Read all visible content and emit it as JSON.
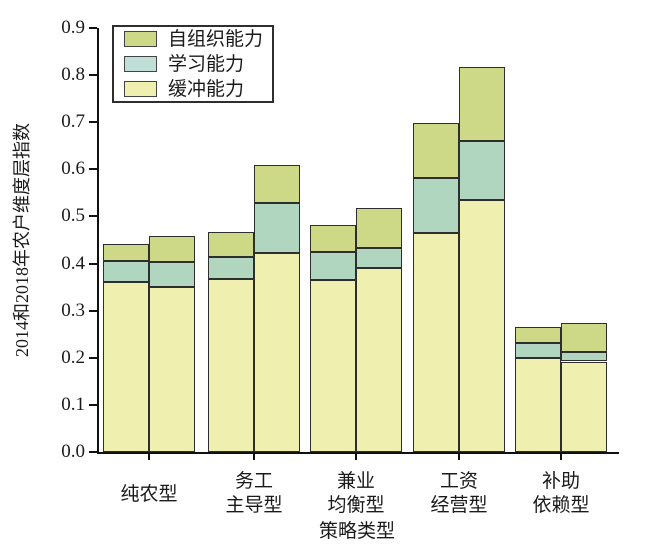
{
  "chart_data": {
    "type": "bar",
    "stacked": true,
    "title": "",
    "xlabel": "策略类型",
    "ylabel": "2014和2018年农户维度层指数",
    "ylim": [
      0,
      0.9
    ],
    "ytick_step": 0.1,
    "ytick_labels": [
      "0.0",
      "0.1",
      "0.2",
      "0.3",
      "0.4",
      "0.5",
      "0.6",
      "0.7",
      "0.8",
      "0.9"
    ],
    "grid": false,
    "legend_position": "top-left-inside",
    "series_bottom_to_top": [
      {
        "name": "缓冲能力",
        "color": "#efefaf"
      },
      {
        "name": "学习能力",
        "color": "#b1d6c0"
      },
      {
        "name": "自组织能力",
        "color": "#cdd987"
      }
    ],
    "legend": [
      {
        "label": "自组织能力",
        "color": "#cdd987"
      },
      {
        "label": "学习能力",
        "color": "#bfdfd6"
      },
      {
        "label": "缓冲能力",
        "color": "#efefaf"
      }
    ],
    "categories": [
      {
        "label_lines": [
          "纯农型"
        ],
        "bars": [
          [
            0.361,
            0.045,
            0.036
          ],
          [
            0.35,
            0.054,
            0.054
          ]
        ]
      },
      {
        "label_lines": [
          "务工",
          "主导型"
        ],
        "bars": [
          [
            0.367,
            0.047,
            0.053
          ],
          [
            0.423,
            0.106,
            0.08
          ]
        ]
      },
      {
        "label_lines": [
          "兼业",
          "均衡型"
        ],
        "bars": [
          [
            0.365,
            0.059,
            0.058
          ],
          [
            0.39,
            0.043,
            0.084
          ]
        ]
      },
      {
        "label_lines": [
          "工资",
          "经营型"
        ],
        "bars": [
          [
            0.465,
            0.116,
            0.117
          ],
          [
            0.535,
            0.125,
            0.157
          ]
        ]
      },
      {
        "label_lines": [
          "补助",
          "依赖型"
        ],
        "bars": [
          [
            0.2,
            0.031,
            0.034
          ],
          [
            0.192,
            0.02,
            0.062
          ]
        ]
      }
    ]
  }
}
